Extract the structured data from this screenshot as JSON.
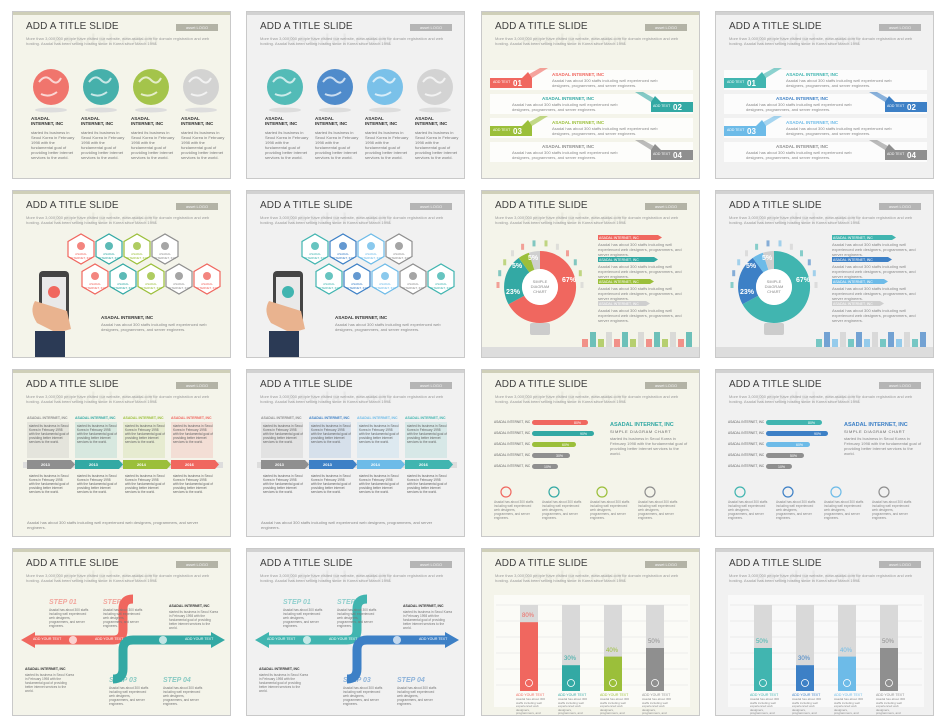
{
  "slides": [
    {
      "id": "s1",
      "title": "ADD A TITLE SLIDE",
      "logo": "asset LOGO",
      "subtitle": "More than 3,000,000 people have visited our website, www.asadal.com for domain registration and web hosting. Asadal has been selling hosting since in Korea since March 1998.",
      "theme": "warm"
    },
    {
      "id": "s2",
      "title": "ADD A TITLE SLIDE",
      "logo": "asset LOGO",
      "subtitle": "More than 3,000,000 people have visited our website, www.asadal.com for domain registration and web hosting. Asadal has been selling hosting since in Korea since March 1998.",
      "theme": "blue"
    },
    {
      "id": "s3",
      "title": "ADD A TITLE SLIDE",
      "logo": "asset LOGO",
      "subtitle": "More than 3,000,000 people have visited our website, www.asadal.com for domain registration and web hosting. Asadal has been selling hosting since in Korea since March 1998.",
      "theme": "warm"
    },
    {
      "id": "s4",
      "title": "ADD A TITLE SLIDE",
      "logo": "asset LOGO",
      "subtitle": "More than 3,000,000 people have visited our website, www.asadal.com for domain registration and web hosting. Asadal has been selling hosting since in Korea since March 1998.",
      "theme": "blue"
    },
    {
      "id": "s5",
      "title": "ADD A TITLE SLIDE",
      "logo": "asset LOGO",
      "subtitle": "More than 3,000,000 people have visited our website, www.asadal.com for domain registration and web hosting. Asadal has been selling hosting since in Korea since March 1998.",
      "theme": "warm"
    },
    {
      "id": "s6",
      "title": "ADD A TITLE SLIDE",
      "logo": "asset LOGO",
      "subtitle": "More than 3,000,000 people have visited our website, www.asadal.com for domain registration and web hosting. Asadal has been selling hosting since in Korea since March 1998.",
      "theme": "blue"
    },
    {
      "id": "s7",
      "title": "ADD A TITLE SLIDE",
      "logo": "asset LOGO",
      "subtitle": "More than 3,000,000 people have visited our website, www.asadal.com for domain registration and web hosting. Asadal has been selling hosting since in Korea since March 1998.",
      "theme": "warm"
    },
    {
      "id": "s8",
      "title": "ADD A TITLE SLIDE",
      "logo": "asset LOGO",
      "subtitle": "More than 3,000,000 people have visited our website, www.asadal.com for domain registration and web hosting. Asadal has been selling hosting since in Korea since March 1998.",
      "theme": "blue"
    },
    {
      "id": "s9",
      "title": "ADD A TITLE SLIDE",
      "logo": "asset LOGO",
      "subtitle": "More than 3,000,000 people have visited our website, www.asadal.com for domain registration and web hosting. Asadal has been selling hosting since in Korea since March 1998.",
      "theme": "warm"
    },
    {
      "id": "s10",
      "title": "ADD A TITLE SLIDE",
      "logo": "asset LOGO",
      "subtitle": "More than 3,000,000 people have visited our website, www.asadal.com for domain registration and web hosting. Asadal has been selling hosting since in Korea since March 1998.",
      "theme": "blue"
    },
    {
      "id": "s11",
      "title": "ADD A TITLE SLIDE",
      "logo": "asset LOGO",
      "subtitle": "More than 3,000,000 people have visited our website, www.asadal.com for domain registration and web hosting. Asadal has been selling hosting since in Korea since March 1998.",
      "theme": "warm"
    },
    {
      "id": "s12",
      "title": "ADD A TITLE SLIDE",
      "logo": "asset LOGO",
      "subtitle": "More than 3,000,000 people have visited our website, www.asadal.com for domain registration and web hosting. Asadal has been selling hosting since in Korea since March 1998.",
      "theme": "blue"
    },
    {
      "id": "s13",
      "title": "ADD A TITLE SLIDE",
      "logo": "asset LOGO",
      "subtitle": "More than 3,000,000 people have visited our website, www.asadal.com for domain registration and web hosting. Asadal has been selling hosting since in Korea since March 1998.",
      "theme": "warm"
    },
    {
      "id": "s14",
      "title": "ADD A TITLE SLIDE",
      "logo": "asset LOGO",
      "subtitle": "More than 3,000,000 people have visited our website, www.asadal.com for domain registration and web hosting. Asadal has been selling hosting since in Korea since March 1998.",
      "theme": "blue"
    },
    {
      "id": "s15",
      "title": "ADD A TITLE SLIDE",
      "logo": "asset LOGO",
      "subtitle": "More than 3,000,000 people have visited our website, www.asadal.com for domain registration and web hosting. Asadal has been selling hosting since in Korea since March 1998.",
      "theme": "warm"
    },
    {
      "id": "s16",
      "title": "ADD A TITLE SLIDE",
      "logo": "asset LOGO",
      "subtitle": "More than 3,000,000 people have visited our website, www.asadal.com for domain registration and web hosting. Asadal has been selling hosting since in Korea since March 1998.",
      "theme": "blue"
    }
  ],
  "company": "ASADAL INTERNET, INC",
  "company_multiline": [
    "ASADAL",
    "INTERNET, INC"
  ],
  "body_short": "started its business in Seoul Korea in February 1998 with the fundamental goal of providing better internet services to the world.",
  "body_long": "Asadal has about 300 staffs including well experienced web designers, programmers, and server engineers.",
  "add_text": "ADD TEXT",
  "add_your_text": "ADD YOUR TEXT",
  "simple_diagram": "SIMPLE DIAGRAM CHART",
  "donut": {
    "center": [
      "SIMPLE",
      "DIAGRAM",
      "CHART"
    ],
    "values": [
      67,
      23,
      5,
      5
    ]
  },
  "years": [
    "2013",
    "2013",
    "2014",
    "2016"
  ],
  "steps": [
    "STEP 01",
    "STEP 02",
    "STEP 03",
    "STEP 04"
  ],
  "nums": [
    "01",
    "02",
    "03",
    "04"
  ],
  "percents_warm": [
    "80%",
    "90%",
    "60%",
    "30%",
    "10%"
  ],
  "percents_blue": [
    "80%",
    "90%",
    "60%",
    "50%",
    "10%"
  ],
  "bar_pcts_warm": [
    "80%",
    "30%",
    "40%",
    "50%"
  ],
  "bar_pcts_blue": [
    "50%",
    "30%",
    "40%",
    "50%"
  ],
  "colors": {
    "red": "#f0675f",
    "teal": "#33a9a4",
    "green": "#9bbf3a",
    "gray": "#8f8f8f",
    "blue": "#3d80c6",
    "lightblue": "#6dbbe8",
    "teal_blue": "#41b5b0"
  }
}
